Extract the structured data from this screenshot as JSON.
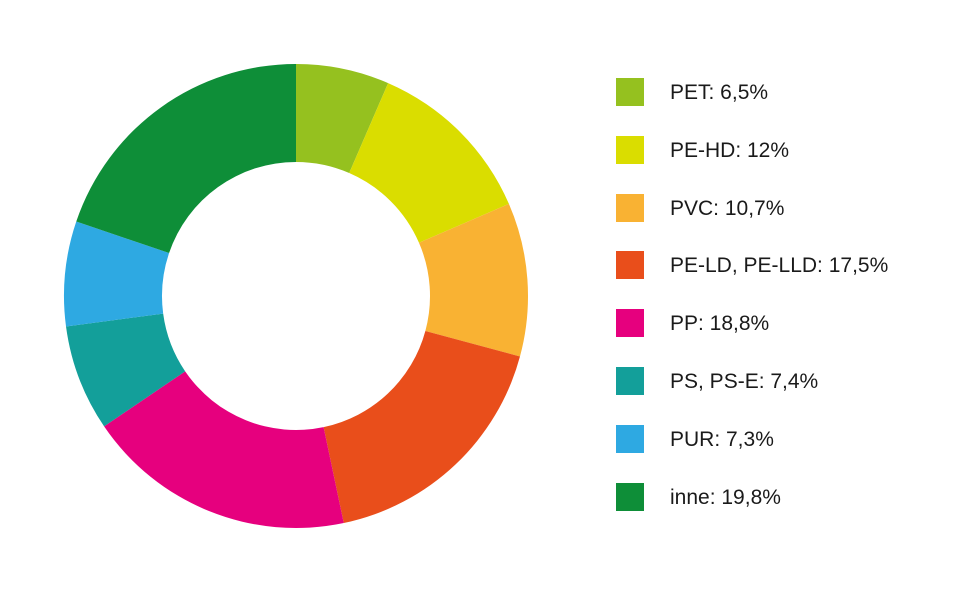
{
  "chart_data": {
    "type": "pie",
    "donut": true,
    "legend_position": "right",
    "slices": [
      {
        "label": "PET: 6,5%",
        "name": "PET",
        "value": 6.5,
        "color": "#95c11f"
      },
      {
        "label": "PE-HD: 12%",
        "name": "PE-HD",
        "value": 12,
        "color": "#dadd00"
      },
      {
        "label": "PVC: 10,7%",
        "name": "PVC",
        "value": 10.7,
        "color": "#f9b233"
      },
      {
        "label": "PE-LD, PE-LLD: 17,5%",
        "name": "PE-LD, PE-LLD",
        "value": 17.5,
        "color": "#e94e1b"
      },
      {
        "label": "PP: 18,8%",
        "name": "PP",
        "value": 18.8,
        "color": "#e6007e"
      },
      {
        "label": "PS, PS-E: 7,4%",
        "name": "PS, PS-E",
        "value": 7.4,
        "color": "#139f9a"
      },
      {
        "label": "PUR: 7,3%",
        "name": "PUR",
        "value": 7.3,
        "color": "#2ea9e2"
      },
      {
        "label": "inne: 19,8%",
        "name": "inne",
        "value": 19.8,
        "color": "#0e8e38"
      }
    ]
  }
}
